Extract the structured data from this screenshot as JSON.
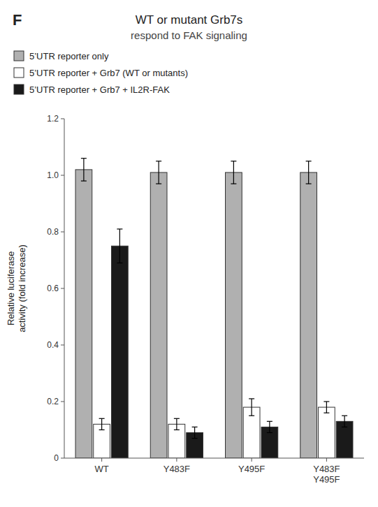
{
  "chart_data": {
    "type": "bar",
    "title": "WT or mutant Grb7s",
    "subtitle": "respond to FAK signaling",
    "annotations": [
      "F"
    ],
    "categories": [
      "WT",
      "Y483F",
      "Y495F",
      "Y483F\nY495F"
    ],
    "series": [
      {
        "name": "5’UTR reporter only",
        "color": "#b0b0b0",
        "values": [
          1.02,
          1.01,
          1.01,
          1.01
        ],
        "errors": [
          0.04,
          0.04,
          0.04,
          0.04
        ]
      },
      {
        "name": "5’UTR reporter + Grb7 (WT or mutants)",
        "color": "#ffffff",
        "values": [
          0.12,
          0.12,
          0.18,
          0.18
        ],
        "errors": [
          0.02,
          0.02,
          0.03,
          0.02
        ]
      },
      {
        "name": "5’UTR reporter + Grb7 + IL2R-FAK",
        "color": "#1a1a1a",
        "values": [
          0.75,
          0.09,
          0.11,
          0.13
        ],
        "errors": [
          0.06,
          0.02,
          0.02,
          0.02
        ]
      }
    ],
    "y_label": "Relative luciferase\nactivity (fold increase)",
    "ylim": [
      0,
      1.2
    ],
    "yticks": [
      0,
      0.2,
      0.4,
      0.6,
      0.8,
      {
        "value": 1.0,
        "label": "1.0"
      },
      1.2
    ],
    "grid": false,
    "legend": "upper left"
  }
}
